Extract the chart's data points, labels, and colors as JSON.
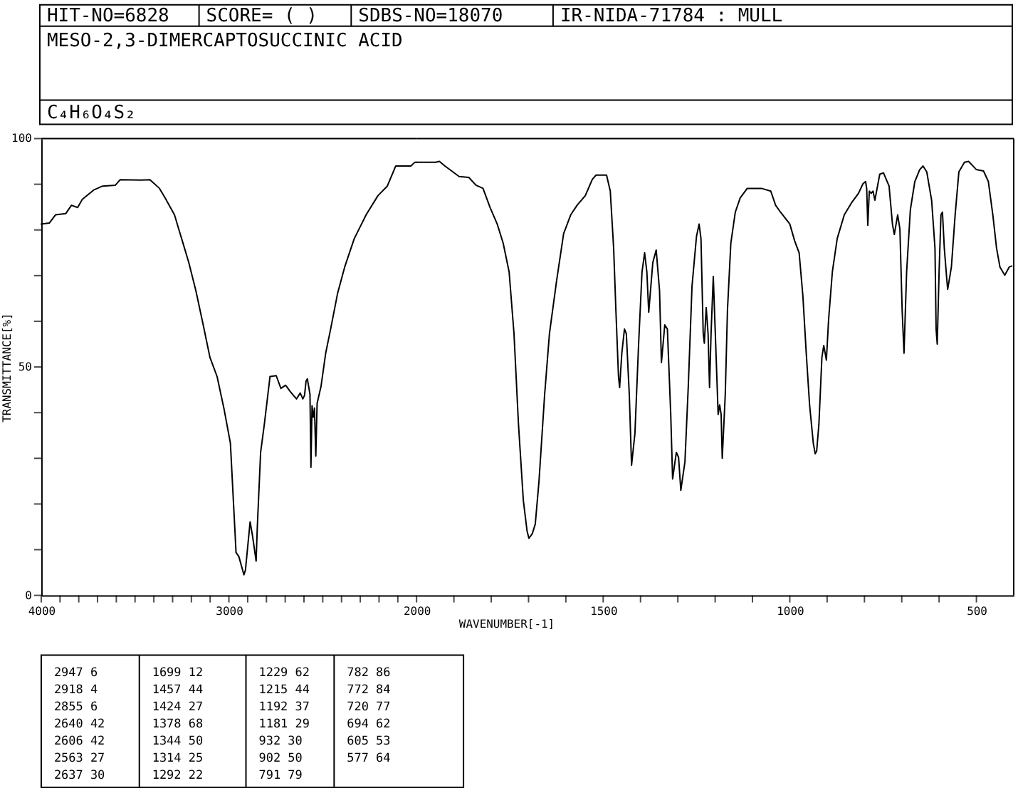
{
  "chart_data": [
    {
      "type": "line",
      "title": "MESO-2,3-DIMERCAPTOSUCCINIC ACID",
      "subtitle": "C₄H₆O₄S₂",
      "ylabel": "TRANSMITTANCE[%]",
      "x": [
        4000,
        3957,
        3924,
        3869,
        3839,
        3806,
        3781,
        3718,
        3673,
        3605,
        3579,
        3466,
        3421,
        3370,
        3340,
        3290,
        3252,
        3214,
        3176,
        3138,
        3101,
        3063,
        3025,
        2992,
        2975,
        2962,
        2947,
        2920,
        2912,
        2887,
        2874,
        2855,
        2849,
        2831,
        2811,
        2781,
        2748,
        2723,
        2698,
        2673,
        2640,
        2620,
        2606,
        2597,
        2589,
        2582,
        2568,
        2563,
        2557,
        2550,
        2544,
        2537,
        2530,
        2509,
        2484,
        2458,
        2421,
        2383,
        2332,
        2269,
        2206,
        2156,
        2111,
        2030,
        2010,
        2000
      ],
      "series": [
        {
          "color": "#000000",
          "values": [
            81.3,
            81.5,
            83.3,
            83.6,
            85.4,
            84.9,
            86.7,
            88.8,
            89.6,
            89.8,
            91.0,
            90.9,
            91.0,
            89.1,
            87.0,
            83.3,
            78.1,
            72.9,
            66.7,
            59.4,
            52.1,
            47.9,
            40.6,
            33.3,
            19.8,
            9.4,
            8.5,
            4.5,
            5.5,
            16.1,
            13.0,
            7.5,
            14.6,
            31.3,
            37.5,
            47.9,
            48.1,
            45.3,
            46.0,
            44.6,
            43.0,
            44.3,
            43.0,
            43.8,
            46.9,
            47.4,
            44.0,
            28.0,
            41.5,
            39.0,
            41.0,
            30.5,
            42.0,
            45.8,
            53.1,
            58.3,
            66.1,
            71.9,
            78.1,
            83.3,
            87.5,
            89.6,
            94.0,
            94.0,
            94.8,
            94.8
          ]
        }
      ],
      "xlim": [
        4000,
        2000
      ],
      "ylim": [
        0,
        100
      ],
      "xticks": [
        4000,
        {
          "value": 3900,
          "label": null
        },
        {
          "value": 3800,
          "label": null
        },
        {
          "value": 3700,
          "label": null
        },
        {
          "value": 3600,
          "label": null
        },
        {
          "value": 3500,
          "label": null
        },
        {
          "value": 3400,
          "label": null
        },
        {
          "value": 3300,
          "label": null
        },
        {
          "value": 3200,
          "label": null
        },
        {
          "value": 3100,
          "label": null
        },
        3000,
        {
          "value": 2900,
          "label": null
        },
        {
          "value": 2800,
          "label": null
        },
        {
          "value": 2700,
          "label": null
        },
        {
          "value": 2600,
          "label": null
        },
        {
          "value": 2500,
          "label": null
        },
        {
          "value": 2400,
          "label": null
        },
        {
          "value": 2300,
          "label": null
        },
        {
          "value": 2200,
          "label": null
        },
        {
          "value": 2100,
          "label": null
        }
      ],
      "yticks": [
        0,
        {
          "value": 10,
          "label": null
        },
        {
          "value": 20,
          "label": null
        },
        {
          "value": 30,
          "label": null
        },
        {
          "value": 40,
          "label": null
        },
        50,
        {
          "value": 60,
          "label": null
        },
        {
          "value": 70,
          "label": null
        },
        {
          "value": 80,
          "label": null
        },
        {
          "value": 90,
          "label": null
        },
        100
      ],
      "line_style": "solid",
      "annotations": [
        "HIT-NO=6828",
        "SCORE= (  )",
        "SDBS-NO=18070",
        "IR-NIDA-71784 : MULL",
        "2947 6",
        "2918 4",
        "2855 6",
        "2640 42",
        "2606 42",
        "2563 27",
        "2637 30",
        "1699 12",
        "1457 44",
        "1424 27",
        "1378 68",
        "1344 50",
        "1314 25",
        "1292 22",
        "1229 62",
        "1215 44",
        "1192 37",
        "1181 29",
        "932 30",
        "902 50",
        "791 79",
        "782 86",
        "772 84",
        "720 77",
        "694 62",
        "605 53",
        "577 64"
      ]
    },
    {
      "type": "line",
      "xlabel": "WAVENUMBER[-1]",
      "x": [
        2000,
        1949,
        1939,
        1924,
        1886,
        1860,
        1841,
        1822,
        1803,
        1784,
        1768,
        1752,
        1739,
        1727,
        1714,
        1704,
        1699,
        1690,
        1682,
        1672,
        1657,
        1644,
        1625,
        1606,
        1587,
        1570,
        1548,
        1529,
        1519,
        1491,
        1481,
        1472,
        1466,
        1459,
        1456,
        1450,
        1443,
        1438,
        1430,
        1424,
        1415,
        1405,
        1396,
        1389,
        1383,
        1378,
        1367,
        1358,
        1349,
        1344,
        1335,
        1328,
        1319,
        1314,
        1304,
        1298,
        1292,
        1281,
        1272,
        1262,
        1250,
        1243,
        1238,
        1232,
        1229,
        1224,
        1219,
        1215,
        1211,
        1205,
        1200,
        1192,
        1188,
        1184,
        1181,
        1173,
        1167,
        1158,
        1146,
        1133,
        1114,
        1076,
        1051,
        1038,
        1025,
        1000,
        987,
        975,
        965,
        956,
        947,
        937,
        932,
        928,
        922,
        914,
        909,
        902,
        896,
        886,
        873,
        854,
        835,
        816,
        804,
        797,
        794,
        791,
        787,
        782,
        777,
        772,
        759,
        749,
        734,
        725,
        720,
        711,
        705,
        699,
        694,
        687,
        677,
        665,
        652,
        643,
        633,
        620,
        611,
        608,
        605,
        600,
        595,
        591,
        586,
        580,
        577,
        567,
        557,
        547,
        532,
        521,
        500,
        481,
        468,
        456,
        446,
        437,
        424,
        412,
        405
      ],
      "series": [
        {
          "color": "#000000",
          "values": [
            94.8,
            94.8,
            95.0,
            94.0,
            91.7,
            91.5,
            89.8,
            89.1,
            84.9,
            81.3,
            77.1,
            70.8,
            57.3,
            37.5,
            20.8,
            14.1,
            12.5,
            13.5,
            15.6,
            25.0,
            43.8,
            57.3,
            68.8,
            79.2,
            83.3,
            85.4,
            87.5,
            91.1,
            92.0,
            92.0,
            88.5,
            76.0,
            62.5,
            47.9,
            45.5,
            53.1,
            58.3,
            57.3,
            43.8,
            28.5,
            35.4,
            55.2,
            70.8,
            75.0,
            70.8,
            62.0,
            72.9,
            75.6,
            66.7,
            51.0,
            59.2,
            58.3,
            39.6,
            25.5,
            31.3,
            30.2,
            23.0,
            29.2,
            45.8,
            67.7,
            78.6,
            81.3,
            78.1,
            57.3,
            55.2,
            63.0,
            57.3,
            45.5,
            57.3,
            69.8,
            58.3,
            39.6,
            41.7,
            39.6,
            30.0,
            43.8,
            62.5,
            77.1,
            83.9,
            87.0,
            89.1,
            89.1,
            88.5,
            85.4,
            83.9,
            81.3,
            77.6,
            75.0,
            65.6,
            53.1,
            41.7,
            33.3,
            31.0,
            31.6,
            37.5,
            52.1,
            54.7,
            51.5,
            60.4,
            70.8,
            78.1,
            83.3,
            85.9,
            88.0,
            90.1,
            90.6,
            89.1,
            81.0,
            88.5,
            88.0,
            88.5,
            86.5,
            92.2,
            92.5,
            89.6,
            81.3,
            79.0,
            83.3,
            80.2,
            62.5,
            53.0,
            70.8,
            84.4,
            90.6,
            93.2,
            94.0,
            92.7,
            86.5,
            76.0,
            58.3,
            55.0,
            70.8,
            83.3,
            83.9,
            76.0,
            69.8,
            67.0,
            71.9,
            83.3,
            92.7,
            94.8,
            95.0,
            93.2,
            92.9,
            90.6,
            83.3,
            76.0,
            71.9,
            70.1,
            71.9,
            72.1
          ]
        }
      ],
      "xlim": [
        2000,
        400
      ],
      "ylim": [
        0,
        100
      ],
      "xticks": [
        2000,
        {
          "value": 1900,
          "label": null
        },
        {
          "value": 1800,
          "label": null
        },
        {
          "value": 1700,
          "label": null
        },
        {
          "value": 1600,
          "label": null
        },
        1500,
        {
          "value": 1400,
          "label": null
        },
        {
          "value": 1300,
          "label": null
        },
        {
          "value": 1200,
          "label": null
        },
        {
          "value": 1100,
          "label": null
        },
        1000,
        {
          "value": 900,
          "label": null
        },
        {
          "value": 800,
          "label": null
        },
        {
          "value": 700,
          "label": null
        },
        {
          "value": 600,
          "label": null
        },
        500
      ],
      "tick_labels": "x",
      "line_style": "solid"
    }
  ]
}
